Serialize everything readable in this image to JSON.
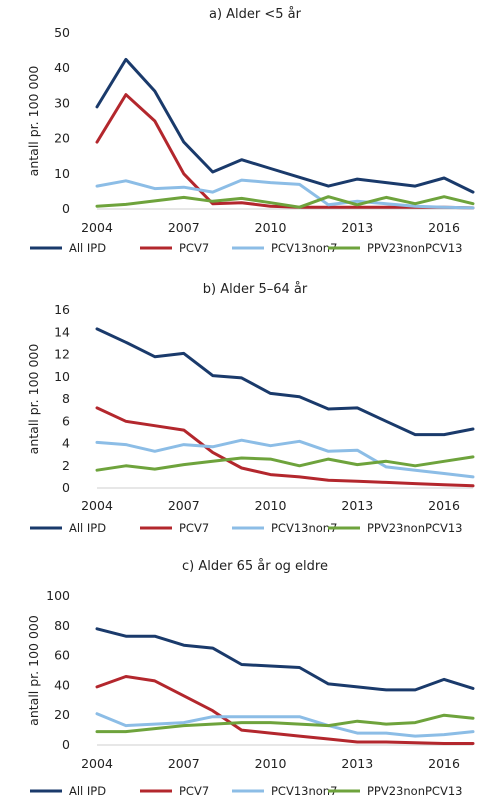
{
  "colors": {
    "All IPD": "#1a3a6b",
    "PCV7": "#b3272d",
    "PCV13non7": "#8cbde6",
    "PPV23nonPCV13": "#6ea33c"
  },
  "chart_data": [
    {
      "type": "line",
      "title": "a) Alder <5 år",
      "ylabel": "antall pr. 100 000",
      "xlabel": "",
      "ylim": [
        0,
        50
      ],
      "yticks": [
        0,
        10,
        20,
        30,
        40,
        50
      ],
      "xlim": [
        2004,
        2017
      ],
      "xticks": [
        2004,
        2007,
        2010,
        2013,
        2016
      ],
      "x": [
        2004,
        2005,
        2006,
        2007,
        2008,
        2009,
        2010,
        2011,
        2012,
        2013,
        2014,
        2015,
        2016,
        2017
      ],
      "legend_position": "bottom",
      "series": [
        {
          "name": "All IPD",
          "values": [
            29,
            42.5,
            33.5,
            19,
            10.5,
            14,
            11.5,
            9,
            6.5,
            8.5,
            7.5,
            6.5,
            8.8,
            4.8
          ]
        },
        {
          "name": "PCV7",
          "values": [
            19,
            32.5,
            25,
            10,
            1.5,
            1.8,
            0.8,
            0.5,
            0.5,
            0.5,
            0.5,
            0.5,
            0.5,
            0.3
          ]
        },
        {
          "name": "PCV13non7",
          "values": [
            6.5,
            8,
            5.8,
            6.2,
            4.8,
            8.2,
            7.5,
            7,
            1.2,
            2.2,
            1.5,
            0.8,
            0.5,
            0.3
          ]
        },
        {
          "name": "PPV23nonPCV13",
          "values": [
            0.8,
            1.3,
            2.3,
            3.3,
            2.2,
            3,
            1.8,
            0.5,
            3.5,
            1.2,
            3.3,
            1.5,
            3.5,
            1.5
          ]
        }
      ]
    },
    {
      "type": "line",
      "title": "b) Alder 5–64 år",
      "ylabel": "antall pr. 100 000",
      "xlabel": "",
      "ylim": [
        0,
        16
      ],
      "yticks": [
        0,
        2,
        4,
        6,
        8,
        10,
        12,
        14,
        16
      ],
      "xlim": [
        2004,
        2017
      ],
      "xticks": [
        2004,
        2007,
        2010,
        2013,
        2016
      ],
      "x": [
        2004,
        2005,
        2006,
        2007,
        2008,
        2009,
        2010,
        2011,
        2012,
        2013,
        2014,
        2015,
        2016,
        2017
      ],
      "legend_position": "bottom",
      "series": [
        {
          "name": "All IPD",
          "values": [
            14.3,
            13.1,
            11.8,
            12.1,
            10.1,
            9.9,
            8.5,
            8.2,
            7.1,
            7.2,
            6,
            4.8,
            4.8,
            5.3
          ]
        },
        {
          "name": "PCV7",
          "values": [
            7.2,
            6,
            5.6,
            5.2,
            3.2,
            1.8,
            1.2,
            1,
            0.7,
            0.6,
            0.5,
            0.4,
            0.3,
            0.2
          ]
        },
        {
          "name": "PCV13non7",
          "values": [
            4.1,
            3.9,
            3.3,
            3.9,
            3.7,
            4.3,
            3.8,
            4.2,
            3.3,
            3.4,
            1.9,
            1.6,
            1.3,
            1
          ]
        },
        {
          "name": "PPV23nonPCV13",
          "values": [
            1.6,
            2,
            1.7,
            2.1,
            2.4,
            2.7,
            2.6,
            2,
            2.6,
            2.1,
            2.4,
            2,
            2.4,
            2.8
          ]
        }
      ]
    },
    {
      "type": "line",
      "title": "c) Alder 65 år og eldre",
      "ylabel": "antall pr. 100 000",
      "xlabel": "",
      "ylim": [
        0,
        100
      ],
      "yticks": [
        0,
        20,
        40,
        60,
        80,
        100
      ],
      "xlim": [
        2004,
        2017
      ],
      "xticks": [
        2004,
        2007,
        2010,
        2013,
        2016
      ],
      "x": [
        2004,
        2005,
        2006,
        2007,
        2008,
        2009,
        2010,
        2011,
        2012,
        2013,
        2014,
        2015,
        2016,
        2017
      ],
      "legend_position": "bottom",
      "series": [
        {
          "name": "All IPD",
          "values": [
            78,
            73,
            73,
            67,
            65,
            54,
            53,
            52,
            41,
            39,
            37,
            37,
            44,
            38
          ]
        },
        {
          "name": "PCV7",
          "values": [
            39,
            46,
            43,
            33,
            23,
            10,
            8,
            6,
            4,
            2,
            2,
            1.5,
            1,
            1
          ]
        },
        {
          "name": "PCV13non7",
          "values": [
            21,
            13,
            14,
            15,
            19,
            19,
            19,
            19,
            13,
            8,
            8,
            6,
            7,
            9
          ]
        },
        {
          "name": "PPV23nonPCV13",
          "values": [
            9,
            9,
            11,
            13,
            14,
            15,
            15,
            14,
            13,
            16,
            14,
            15,
            20,
            18
          ]
        }
      ]
    }
  ]
}
